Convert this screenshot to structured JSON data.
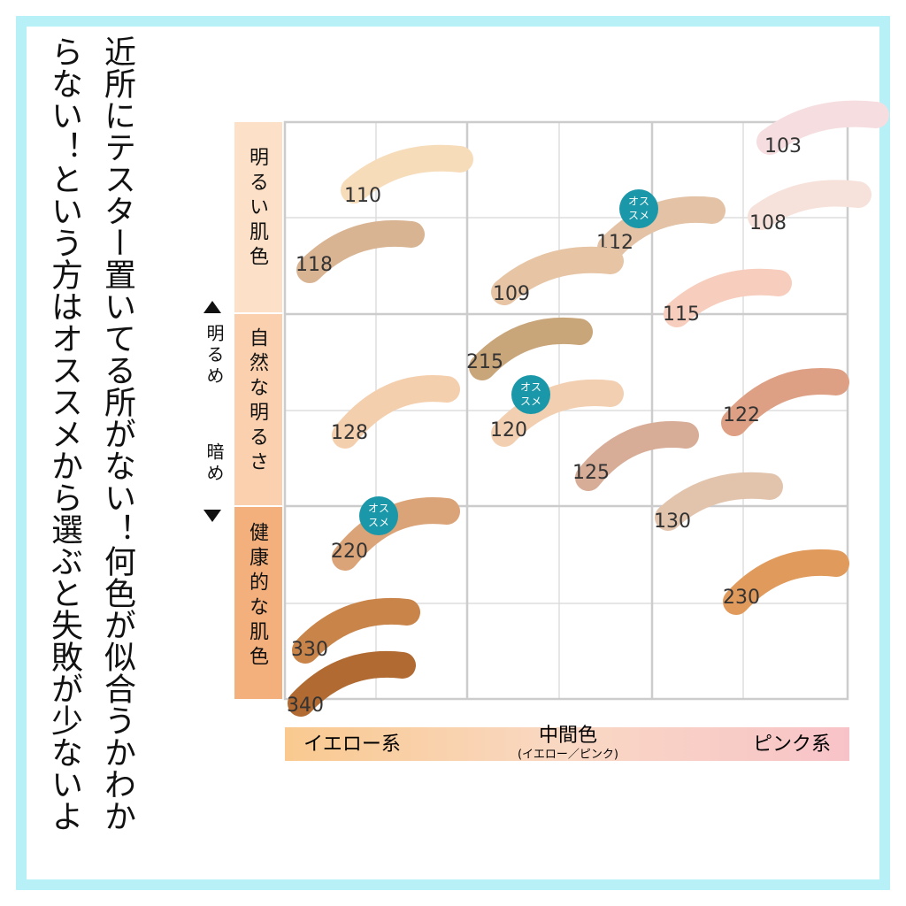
{
  "caption": [
    "近所にテスター置いてる所がない！何色が似合うかわか",
    "らない！という方はオススメから選ぶと失敗が少ないよ"
  ],
  "rows": [
    "明るい肌色",
    "自然な明るさ",
    "健康的な肌色"
  ],
  "brightness": {
    "up": "明るめ",
    "down": "暗め"
  },
  "columns": {
    "left": "イエロー系",
    "middle": "中間色",
    "middle_sub": "(イエロー／ピンク)",
    "right": "ピンク系"
  },
  "badge_lines": [
    "オス",
    "スメ"
  ],
  "shades": [
    {
      "code": "110",
      "color": "#f7dcba"
    },
    {
      "code": "103",
      "color": "#f6dde0"
    },
    {
      "code": "108",
      "color": "#f6e2da"
    },
    {
      "code": "118",
      "color": "#d9b493"
    },
    {
      "code": "112",
      "color": "#e3c2a5",
      "recommended": true
    },
    {
      "code": "109",
      "color": "#e6c4a4"
    },
    {
      "code": "115",
      "color": "#f7cdbd"
    },
    {
      "code": "215",
      "color": "#c9a57a"
    },
    {
      "code": "120",
      "color": "#f2cfb0",
      "recommended": true
    },
    {
      "code": "128",
      "color": "#f4cfad"
    },
    {
      "code": "122",
      "color": "#dea084"
    },
    {
      "code": "125",
      "color": "#d8ad98"
    },
    {
      "code": "130",
      "color": "#e2c4ad"
    },
    {
      "code": "220",
      "color": "#dba478",
      "recommended": true
    },
    {
      "code": "230",
      "color": "#e09a5c"
    },
    {
      "code": "330",
      "color": "#c98449"
    },
    {
      "code": "340",
      "color": "#b06a32"
    }
  ]
}
